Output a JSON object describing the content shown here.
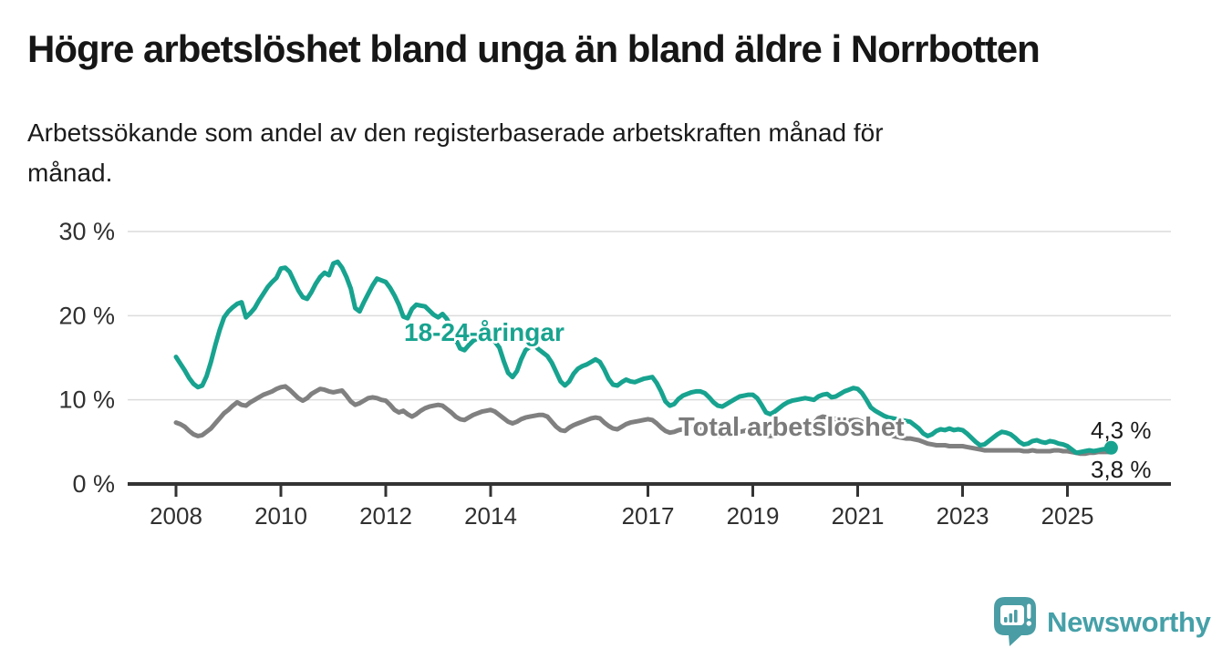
{
  "header": {
    "title": "Högre arbetslöshet bland unga än bland äldre i Norrbotten",
    "subtitle_lines": [
      "Arbetssökande som andel av den registerbaserade arbetskraften månad för",
      "månad."
    ]
  },
  "branding": {
    "logo_text": "Newsworthy",
    "logo_icon": "newsworthy-chart-bubble-icon",
    "logo_color": "#45a0a8"
  },
  "chart_data": {
    "type": "line",
    "title": "Högre arbetslöshet bland unga än bland äldre i Norrbotten",
    "subtitle": "Arbetssökande som andel av den registerbaserade arbetskraften månad för månad.",
    "frequency": "monthly",
    "grid": "horizontal",
    "legend_position": "inline-labels",
    "x_axis": {
      "start_year": 2008,
      "tick_values": [
        2008,
        2010,
        2012,
        2014,
        2017,
        2019,
        2021,
        2023,
        2025
      ],
      "tick_labels": [
        "2008",
        "2010",
        "2012",
        "2014",
        "2017",
        "2019",
        "2021",
        "2023",
        "2025"
      ]
    },
    "y_axis": {
      "range": [
        0,
        30
      ],
      "unit": "%",
      "tick_values": [
        30,
        20,
        10,
        0
      ],
      "tick_labels": [
        "30 %",
        "20 %",
        "10 %",
        "0 %"
      ]
    },
    "series": [
      {
        "name": "18-24-åringar",
        "slug": "young",
        "color": "#17a38f",
        "end_label": "4,3 %",
        "end_value": 4.3,
        "values": [
          15.1,
          14.3,
          13.5,
          12.6,
          11.9,
          11.5,
          11.7,
          12.8,
          14.5,
          16.5,
          18.3,
          19.8,
          20.5,
          21.0,
          21.4,
          21.6,
          19.8,
          20.3,
          20.9,
          21.8,
          22.6,
          23.4,
          24.0,
          24.5,
          25.6,
          25.7,
          25.2,
          24.1,
          23.0,
          22.2,
          22.0,
          22.8,
          23.8,
          24.6,
          25.1,
          24.8,
          26.2,
          26.4,
          25.7,
          24.6,
          23.2,
          20.9,
          20.5,
          21.6,
          22.6,
          23.6,
          24.4,
          24.2,
          24.0,
          23.3,
          22.4,
          21.3,
          19.9,
          19.7,
          20.8,
          21.3,
          21.2,
          21.1,
          20.6,
          20.1,
          19.8,
          20.2,
          19.6,
          18.5,
          17.2,
          16.1,
          15.9,
          16.5,
          17.0,
          17.3,
          17.5,
          17.5,
          17.4,
          16.9,
          16.2,
          14.6,
          13.2,
          12.7,
          13.4,
          14.8,
          15.9,
          16.3,
          16.5,
          16.0,
          15.6,
          15.2,
          14.4,
          13.3,
          12.2,
          11.7,
          12.2,
          13.1,
          13.7,
          14.0,
          14.2,
          14.5,
          14.8,
          14.5,
          13.6,
          12.5,
          11.8,
          11.7,
          12.1,
          12.4,
          12.2,
          12.1,
          12.3,
          12.5,
          12.6,
          12.7,
          12.0,
          11.0,
          9.8,
          9.3,
          9.5,
          10.1,
          10.5,
          10.7,
          10.9,
          11.0,
          11.0,
          10.8,
          10.3,
          9.7,
          9.3,
          9.2,
          9.5,
          9.8,
          10.1,
          10.4,
          10.5,
          10.6,
          10.6,
          10.2,
          9.4,
          8.5,
          8.3,
          8.6,
          9.0,
          9.4,
          9.7,
          9.9,
          10.0,
          10.1,
          10.2,
          10.1,
          10.0,
          10.4,
          10.6,
          10.7,
          10.3,
          10.4,
          10.7,
          11.0,
          11.2,
          11.4,
          11.3,
          10.8,
          10.0,
          9.1,
          8.7,
          8.4,
          8.1,
          7.9,
          7.8,
          7.7,
          7.6,
          7.5,
          7.4,
          7.0,
          6.6,
          6.0,
          5.7,
          5.9,
          6.3,
          6.5,
          6.4,
          6.6,
          6.4,
          6.5,
          6.4,
          6.0,
          5.5,
          5.0,
          4.6,
          4.7,
          5.1,
          5.5,
          5.9,
          6.2,
          6.1,
          5.9,
          5.5,
          5.0,
          4.7,
          4.8,
          5.1,
          5.2,
          5.0,
          4.9,
          5.1,
          5.0,
          4.8,
          4.7,
          4.5,
          4.1,
          3.7,
          3.8,
          3.9,
          4.0,
          3.9,
          4.0,
          4.1,
          4.2,
          4.3
        ]
      },
      {
        "name": "Total arbetslöshet",
        "slug": "total",
        "color": "#808080",
        "end_label": "3,8 %",
        "end_value": 3.8,
        "values": [
          7.3,
          7.1,
          6.8,
          6.3,
          5.9,
          5.7,
          5.8,
          6.2,
          6.6,
          7.2,
          7.8,
          8.4,
          8.8,
          9.3,
          9.7,
          9.4,
          9.3,
          9.7,
          10.0,
          10.3,
          10.6,
          10.8,
          11.0,
          11.3,
          11.5,
          11.6,
          11.2,
          10.7,
          10.2,
          9.9,
          10.2,
          10.7,
          11.0,
          11.3,
          11.2,
          11.0,
          10.9,
          11.0,
          11.1,
          10.5,
          9.8,
          9.4,
          9.6,
          9.9,
          10.2,
          10.3,
          10.2,
          10.0,
          9.9,
          9.4,
          8.8,
          8.5,
          8.7,
          8.3,
          8.0,
          8.3,
          8.7,
          9.0,
          9.2,
          9.3,
          9.4,
          9.3,
          8.9,
          8.5,
          8.0,
          7.7,
          7.6,
          7.9,
          8.2,
          8.4,
          8.6,
          8.7,
          8.8,
          8.6,
          8.2,
          7.8,
          7.4,
          7.2,
          7.4,
          7.7,
          7.9,
          8.0,
          8.1,
          8.2,
          8.2,
          8.0,
          7.4,
          6.8,
          6.4,
          6.3,
          6.7,
          7.0,
          7.2,
          7.4,
          7.6,
          7.8,
          7.9,
          7.8,
          7.3,
          6.9,
          6.6,
          6.5,
          6.8,
          7.1,
          7.3,
          7.4,
          7.5,
          7.6,
          7.7,
          7.6,
          7.2,
          6.7,
          6.3,
          6.1,
          6.2,
          6.4,
          6.5,
          6.6,
          6.7,
          6.7,
          6.7,
          6.6,
          6.3,
          6.0,
          5.8,
          5.7,
          5.8,
          6.0,
          6.1,
          6.2,
          6.3,
          6.4,
          6.4,
          6.3,
          6.0,
          5.8,
          5.7,
          5.8,
          5.9,
          6.0,
          6.1,
          6.2,
          6.3,
          6.4,
          6.5,
          6.6,
          7.2,
          7.8,
          8.0,
          7.9,
          7.8,
          7.7,
          7.6,
          7.5,
          7.5,
          7.6,
          7.6,
          7.4,
          7.1,
          6.8,
          6.5,
          6.3,
          6.1,
          5.9,
          5.7,
          5.6,
          5.5,
          5.4,
          5.4,
          5.3,
          5.2,
          5.0,
          4.8,
          4.7,
          4.6,
          4.6,
          4.6,
          4.5,
          4.5,
          4.5,
          4.5,
          4.4,
          4.3,
          4.2,
          4.1,
          4.0,
          4.0,
          4.0,
          4.0,
          4.0,
          4.0,
          4.0,
          4.0,
          4.0,
          3.9,
          3.9,
          4.0,
          3.9,
          3.9,
          3.9,
          3.9,
          4.0,
          4.0,
          3.9,
          3.9,
          3.8,
          3.7,
          3.6,
          3.6,
          3.7,
          3.7,
          3.8,
          3.8,
          3.8,
          3.8
        ]
      }
    ]
  }
}
